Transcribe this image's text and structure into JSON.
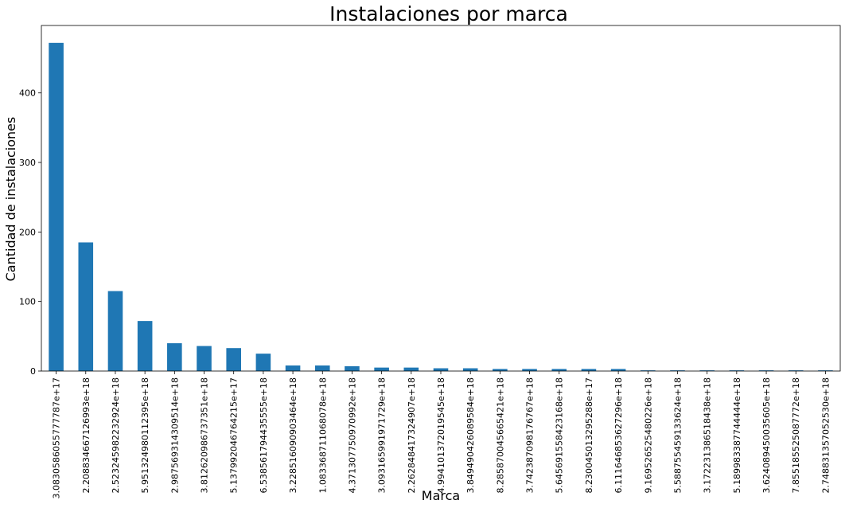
{
  "chart_data": {
    "type": "bar",
    "title": "Instalaciones por marca",
    "xlabel": "Marca",
    "ylabel": "Cantidad de instalaciones",
    "ylim": [
      0,
      497
    ],
    "yticks": [
      0,
      100,
      200,
      300,
      400
    ],
    "grid": false,
    "bar_color": "#1f77b4",
    "categories": [
      "3.0830586055777787e+17",
      "2.208834667126993e+18",
      "2.523245982232924e+18",
      "5.951324980112395e+18",
      "2.987569314309514e+18",
      "3.812620986737351e+18",
      "5.137992046764215e+17",
      "6.538561794435555e+18",
      "3.228516090903464e+18",
      "1.083368711068078e+18",
      "4.371307750970992e+18",
      "3.093165991971729e+18",
      "2.262848417324907e+18",
      "4.994101372019545e+18",
      "3.849490426089584e+18",
      "8.285870045665421e+18",
      "3.742387098176767e+18",
      "5.645691558423168e+18",
      "8.230045013295288e+17",
      "6.111646853627296e+18",
      "9.169526525480226e+18",
      "5.588755459133624e+18",
      "3.172231386518438e+18",
      "5.189983387744444e+18",
      "3.624089450035605e+18",
      "7.855185525087772e+18",
      "2.748831357052530e+18"
    ],
    "values": [
      472,
      185,
      115,
      72,
      40,
      36,
      33,
      25,
      8,
      8,
      7,
      5,
      5,
      4,
      4,
      3,
      3,
      3,
      3,
      3,
      1,
      1,
      1,
      1,
      1,
      1,
      1
    ]
  }
}
